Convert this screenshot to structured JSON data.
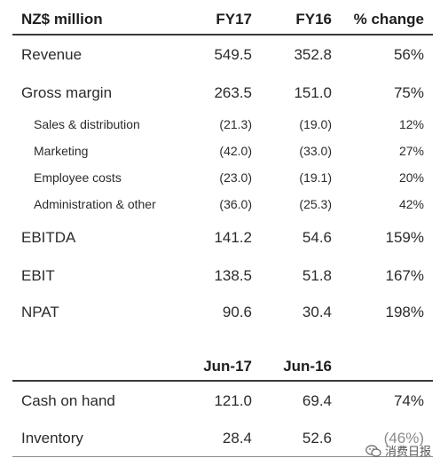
{
  "header": {
    "label": "NZ$ million",
    "col1": "FY17",
    "col2": "FY16",
    "col3": "% change"
  },
  "rows": [
    {
      "label": "Revenue",
      "v1": "549.5",
      "v2": "352.8",
      "v3": "56%"
    },
    {
      "label": "Gross margin",
      "v1": "263.5",
      "v2": "151.0",
      "v3": "75%"
    },
    {
      "label": "Sales & distribution",
      "v1": "(21.3)",
      "v2": "(19.0)",
      "v3": "12%"
    },
    {
      "label": "Marketing",
      "v1": "(42.0)",
      "v2": "(33.0)",
      "v3": "27%"
    },
    {
      "label": "Employee costs",
      "v1": "(23.0)",
      "v2": "(19.1)",
      "v3": "20%"
    },
    {
      "label": "Administration & other",
      "v1": "(36.0)",
      "v2": "(25.3)",
      "v3": "42%"
    },
    {
      "label": "EBITDA",
      "v1": "141.2",
      "v2": "54.6",
      "v3": "159%"
    },
    {
      "label": "EBIT",
      "v1": "138.5",
      "v2": "51.8",
      "v3": "167%"
    },
    {
      "label": "NPAT",
      "v1": "90.6",
      "v2": "30.4",
      "v3": "198%"
    }
  ],
  "balance_header": {
    "col1": "Jun-17",
    "col2": "Jun-16"
  },
  "balance_rows": [
    {
      "label": "Cash on hand",
      "v1": "121.0",
      "v2": "69.4",
      "v3": "74%"
    },
    {
      "label": "Inventory",
      "v1": "28.4",
      "v2": "52.6",
      "v3": "(46%)"
    }
  ],
  "watermark": {
    "text": "消费日报",
    "icon": "wechat-icon"
  }
}
